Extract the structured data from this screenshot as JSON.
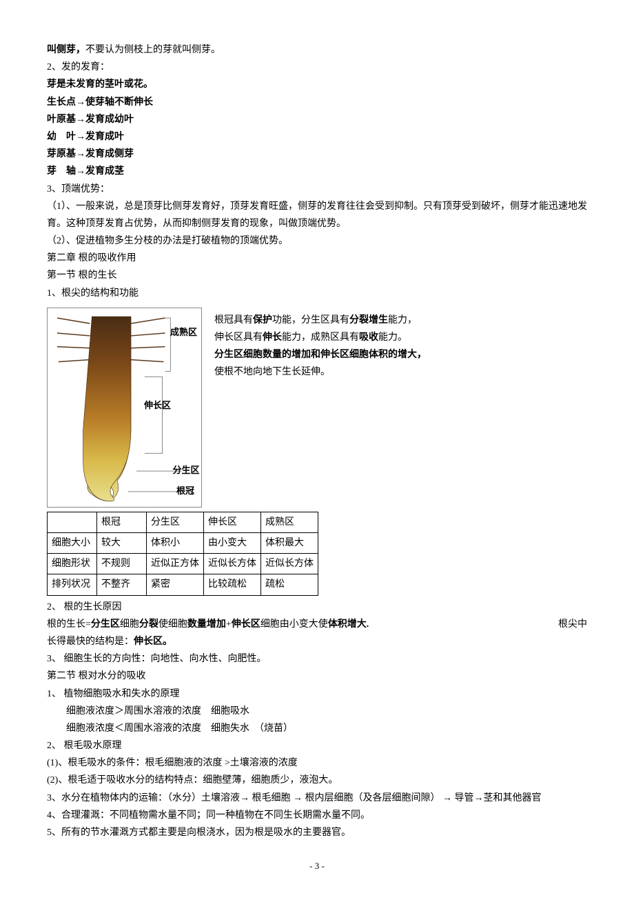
{
  "p1": {
    "a": "叫侧芽，",
    "b": "不要认为侧枝上的芽就叫侧芽。"
  },
  "p2": "2、发的发育：",
  "p3": "芽是未发育的茎叶或花。",
  "p4": "生长点→使芽轴不断伸长",
  "p5": "叶原基→发育成幼叶",
  "p6": "幼　叶→发育成叶",
  "p7": "芽原基→发育成侧芽",
  "p8": "芽　轴→发育成茎",
  "p9": "3、顶端优势：",
  "p10": "（1）、一般来说，总是顶芽比侧芽发育好，顶芽发育旺盛，侧芽的发育往往会受到抑制。只有顶芽受到破坏，侧芽才能迅速地发育。这种顶芽发育占优势，从而抑制侧芽发育的现象，叫做顶端优势。",
  "p11": "（2）、促进植物多生分枝的办法是打破植物的顶端优势。",
  "p12": "第二章 根的吸收作用",
  "p13": "第一节 根的生长",
  "p14": "1、根尖的结构和功能",
  "diagram": {
    "zones": {
      "chengshu": "成熟区",
      "shenchang": "伸长区",
      "fensheng": "分生区",
      "genguan": "根冠"
    },
    "colors": {
      "hair": "#5a3a1e",
      "top": "#4a2d14",
      "upper": "#7a4718",
      "mid": "#b77c27",
      "lower": "#d9b94a",
      "tip": "#e8df8c",
      "line": "#888"
    }
  },
  "sideText": {
    "l1a": "根冠具有",
    "l1b": "保护",
    "l1c": "功能，分生区具有",
    "l1d": "分裂增生",
    "l1e": "能力，",
    "l2a": "伸长区具有",
    "l2b": "伸长",
    "l2c": "能力，成熟区具有",
    "l2d": "吸收",
    "l2e": "能力。",
    "l3": "分生区细胞数量的增加和伸长区细胞体积的增大，",
    "l4": "使根不地向地下生长延伸。"
  },
  "table": {
    "head": [
      "",
      "根冠",
      "分生区",
      "伸长区",
      "成熟区"
    ],
    "rows": [
      [
        "细胞大小",
        "较大",
        "体积小",
        "由小变大",
        "体积最大"
      ],
      [
        "细胞形状",
        "不规则",
        "近似正方体",
        "近似长方体",
        "近似长方体"
      ],
      [
        "排列状况",
        "不整齐",
        "紧密",
        "比较疏松",
        "疏松"
      ]
    ]
  },
  "p15": "2、 根的生长原因",
  "p16": {
    "a": "根的生长=",
    "b": "分生区",
    "c": "细胞",
    "d": "分裂",
    "e": "使细胞",
    "f": "数量增加",
    "g": "+",
    "h": "伸长区",
    "i": "细胞由小变大使",
    "j": "体积增大.",
    "tail": "根尖中"
  },
  "p17": {
    "a": "长得最快的结构是：",
    "b": "伸长区。"
  },
  "p18": "3、 细胞生长的方向性：向地性、向水性、向肥性。",
  "p19": "第二节 根对水分的吸收",
  "p20": "1、 植物细胞吸水和失水的原理",
  "p21": "细胞液浓度＞周围水溶液的浓度　细胞吸水",
  "p22": "细胞液浓度＜周围水溶液的浓度　细胞失水　（烧苗）",
  "p23": "2、 根毛吸水原理",
  "p24": "(1)、根毛吸水的条件：根毛细胞液的浓度 >土壤溶液的浓度",
  "p25": "(2)、根毛适于吸收水分的结构特点：细胞壁薄，细胞质少，液泡大。",
  "p26": "3、水分在植物体内的运输：（水分）土壤溶液→ 根毛细胞 → 根内层细胞（及各层细胞间隙） → 导管→茎和其他器官",
  "p27": "4、合理灌溉：不同植物需水量不同；同一种植物在不同生长期需水量不同。",
  "p28": "5、所有的节水灌溉方式都主要是向根浇水，因为根是吸水的主要器官。",
  "pageNum": "- 3 -"
}
